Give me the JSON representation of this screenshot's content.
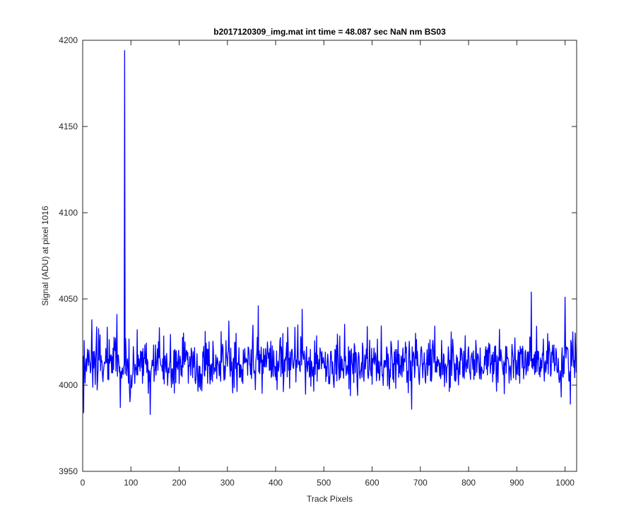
{
  "chart_data": {
    "type": "line",
    "title": "b2017120309_img.mat int time = 48.087 sec  NaN nm BS03",
    "xlabel": "Track Pixels",
    "ylabel": "Signal (ADU) at pixel 1016",
    "xlim": [
      0,
      1024
    ],
    "ylim": [
      3950,
      4200
    ],
    "xticks": [
      0,
      100,
      200,
      300,
      400,
      500,
      600,
      700,
      800,
      900,
      1000
    ],
    "yticks": [
      3950,
      4000,
      4050,
      4100,
      4150,
      4200
    ],
    "xtick_labels": [
      "0",
      "100",
      "200",
      "300",
      "400",
      "500",
      "600",
      "700",
      "800",
      "900",
      "1000"
    ],
    "ytick_labels": [
      "3950",
      "4000",
      "4050",
      "4100",
      "4150",
      "4200"
    ],
    "grid": false,
    "legend": "none",
    "series": [
      {
        "color": "#0000ff",
        "x_start": 1,
        "x_step": 1,
        "baseline": 4013,
        "noise_std": 8,
        "spike": {
          "x": 87,
          "y": 4194
        },
        "notable_points": [
          {
            "x": 2,
            "y": 3984
          },
          {
            "x": 140,
            "y": 3983
          },
          {
            "x": 364,
            "y": 4046
          },
          {
            "x": 455,
            "y": 4044
          },
          {
            "x": 682,
            "y": 3986
          },
          {
            "x": 930,
            "y": 4054
          },
          {
            "x": 1000,
            "y": 4051
          },
          {
            "x": 1011,
            "y": 3989
          }
        ],
        "y_min": 3983,
        "y_max": 4194,
        "n_points": 1024
      }
    ]
  }
}
